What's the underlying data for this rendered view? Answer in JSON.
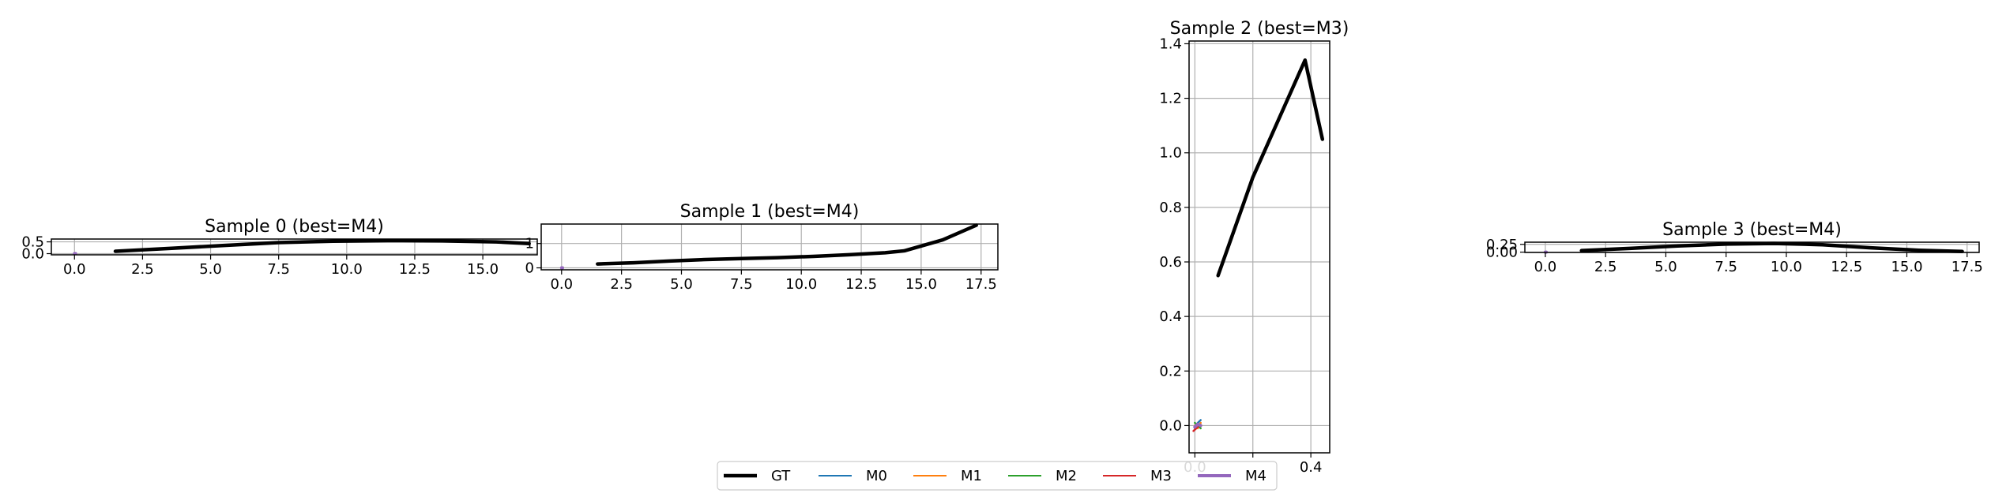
{
  "chart_data": [
    {
      "type": "line",
      "title": "Sample 0 (best=M4)",
      "xlim": [
        -0.85,
        17.0
      ],
      "ylim": [
        -0.05,
        0.62
      ],
      "xticks": [
        0.0,
        2.5,
        5.0,
        7.5,
        10.0,
        12.5,
        15.0
      ],
      "yticks": [
        0.0,
        0.5
      ],
      "xtick_labels": [
        "0.0",
        "2.5",
        "5.0",
        "7.5",
        "10.0",
        "12.5",
        "15.0"
      ],
      "ytick_labels": [
        "0.0",
        "0.5"
      ],
      "grid": true,
      "series": [
        {
          "name": "GT",
          "x": [
            1.5,
            3.5,
            5.5,
            7.5,
            9.5,
            11.5,
            13.5,
            15.5,
            16.7
          ],
          "y": [
            0.1,
            0.22,
            0.35,
            0.47,
            0.53,
            0.55,
            0.54,
            0.5,
            0.43
          ]
        },
        {
          "name": "M0",
          "x": [
            0.0,
            0.02,
            0.04
          ],
          "y": [
            0.0,
            0.01,
            0.0
          ]
        },
        {
          "name": "M1",
          "x": [
            0.0,
            0.02,
            0.04
          ],
          "y": [
            0.0,
            0.0,
            0.01
          ]
        },
        {
          "name": "M2",
          "x": [
            0.0,
            0.02,
            0.04
          ],
          "y": [
            0.01,
            0.0,
            0.0
          ]
        },
        {
          "name": "M3",
          "x": [
            0.0,
            0.02,
            0.04
          ],
          "y": [
            0.0,
            0.01,
            0.01
          ]
        },
        {
          "name": "M4",
          "x": [
            0.0,
            0.02,
            0.04
          ],
          "y": [
            0.0,
            0.0,
            0.0
          ]
        }
      ]
    },
    {
      "type": "line",
      "title": "Sample 1 (best=M4)",
      "xlim": [
        -0.85,
        18.2
      ],
      "ylim": [
        -0.08,
        1.8
      ],
      "xticks": [
        0.0,
        2.5,
        5.0,
        7.5,
        10.0,
        12.5,
        15.0,
        17.5
      ],
      "yticks": [
        0,
        1
      ],
      "xtick_labels": [
        "0.0",
        "2.5",
        "5.0",
        "7.5",
        "10.0",
        "12.5",
        "15.0",
        "17.5"
      ],
      "ytick_labels": [
        "0",
        "1"
      ],
      "grid": true,
      "series": [
        {
          "name": "GT",
          "x": [
            1.5,
            3.0,
            4.5,
            6.0,
            7.5,
            9.0,
            10.5,
            12.0,
            13.5,
            14.3,
            15.9,
            17.3
          ],
          "y": [
            0.16,
            0.21,
            0.28,
            0.34,
            0.38,
            0.42,
            0.47,
            0.54,
            0.62,
            0.7,
            1.15,
            1.75
          ]
        },
        {
          "name": "M0",
          "x": [
            0.0,
            0.02,
            0.04
          ],
          "y": [
            0.0,
            0.01,
            0.0
          ]
        },
        {
          "name": "M1",
          "x": [
            0.0,
            0.02,
            0.04
          ],
          "y": [
            0.0,
            0.0,
            0.01
          ]
        },
        {
          "name": "M2",
          "x": [
            0.0,
            0.02,
            0.04
          ],
          "y": [
            0.01,
            0.0,
            0.0
          ]
        },
        {
          "name": "M3",
          "x": [
            0.0,
            0.02,
            0.04
          ],
          "y": [
            0.0,
            0.01,
            0.01
          ]
        },
        {
          "name": "M4",
          "x": [
            0.0,
            0.02,
            0.04
          ],
          "y": [
            0.0,
            0.0,
            0.0
          ]
        }
      ]
    },
    {
      "type": "line",
      "title": "Sample 2 (best=M3)",
      "xlim": [
        -0.02,
        0.465
      ],
      "ylim": [
        -0.1,
        1.41
      ],
      "xticks": [
        0.0,
        0.2,
        0.4
      ],
      "yticks": [
        0.0,
        0.2,
        0.4,
        0.6,
        0.8,
        1.0,
        1.2,
        1.4
      ],
      "xtick_labels": [
        "0.0",
        "",
        "0.4"
      ],
      "ytick_labels": [
        "0.0",
        "0.2",
        "0.4",
        "0.6",
        "0.8",
        "1.0",
        "1.2",
        "1.4"
      ],
      "grid": true,
      "series": [
        {
          "name": "GT",
          "x": [
            0.08,
            0.2,
            0.38,
            0.44
          ],
          "y": [
            0.55,
            0.91,
            1.34,
            1.05
          ]
        },
        {
          "name": "M0",
          "x": [
            0.0,
            0.01,
            0.02
          ],
          "y": [
            -0.01,
            0.01,
            0.02
          ]
        },
        {
          "name": "M1",
          "x": [
            0.0,
            0.01,
            0.02
          ],
          "y": [
            0.0,
            -0.01,
            0.01
          ]
        },
        {
          "name": "M2",
          "x": [
            0.0,
            0.01,
            0.02
          ],
          "y": [
            0.01,
            0.0,
            -0.01
          ]
        },
        {
          "name": "M3",
          "x": [
            -0.005,
            0.005,
            0.015
          ],
          "y": [
            -0.02,
            -0.01,
            0.0
          ]
        },
        {
          "name": "M4",
          "x": [
            0.0,
            0.01,
            0.02
          ],
          "y": [
            -0.005,
            0.005,
            0.0
          ]
        }
      ]
    },
    {
      "type": "line",
      "title": "Sample 3 (best=M4)",
      "xlim": [
        -0.85,
        18.0
      ],
      "ylim": [
        -0.01,
        0.32
      ],
      "xticks": [
        0.0,
        2.5,
        5.0,
        7.5,
        10.0,
        12.5,
        15.0,
        17.5
      ],
      "yticks": [
        0.0,
        0.25
      ],
      "xtick_labels": [
        "0.0",
        "2.5",
        "5.0",
        "7.5",
        "10.0",
        "12.5",
        "15.0",
        "17.5"
      ],
      "ytick_labels": [
        "0.00",
        "0.25"
      ],
      "grid": true,
      "series": [
        {
          "name": "GT",
          "x": [
            1.5,
            3.5,
            5.5,
            7.5,
            9.5,
            11.5,
            13.5,
            15.5,
            17.3
          ],
          "y": [
            0.05,
            0.12,
            0.2,
            0.26,
            0.28,
            0.24,
            0.14,
            0.06,
            0.02
          ]
        },
        {
          "name": "M0",
          "x": [
            0.0,
            0.02,
            0.04
          ],
          "y": [
            0.0,
            0.005,
            0.0
          ]
        },
        {
          "name": "M1",
          "x": [
            0.0,
            0.02,
            0.04
          ],
          "y": [
            0.0,
            0.0,
            0.005
          ]
        },
        {
          "name": "M2",
          "x": [
            0.0,
            0.02,
            0.04
          ],
          "y": [
            0.005,
            0.0,
            0.0
          ]
        },
        {
          "name": "M3",
          "x": [
            0.0,
            0.02,
            0.04
          ],
          "y": [
            0.0,
            0.005,
            0.005
          ]
        },
        {
          "name": "M4",
          "x": [
            0.0,
            0.02,
            0.04
          ],
          "y": [
            0.0,
            0.0,
            0.0
          ]
        }
      ]
    }
  ],
  "legend": {
    "placement": "bottom-center",
    "entries": [
      {
        "name": "GT",
        "color": "#000000"
      },
      {
        "name": "M0",
        "color": "#1f77b4"
      },
      {
        "name": "M1",
        "color": "#ff7f0e"
      },
      {
        "name": "M2",
        "color": "#2ca02c"
      },
      {
        "name": "M3",
        "color": "#d62728"
      },
      {
        "name": "M4",
        "color": "#9467bd"
      }
    ]
  },
  "colors": {
    "GT": "#000000",
    "M0": "#1f77b4",
    "M1": "#ff7f0e",
    "M2": "#2ca02c",
    "M3": "#d62728",
    "M4": "#9467bd",
    "grid": "#b0b0b0"
  }
}
